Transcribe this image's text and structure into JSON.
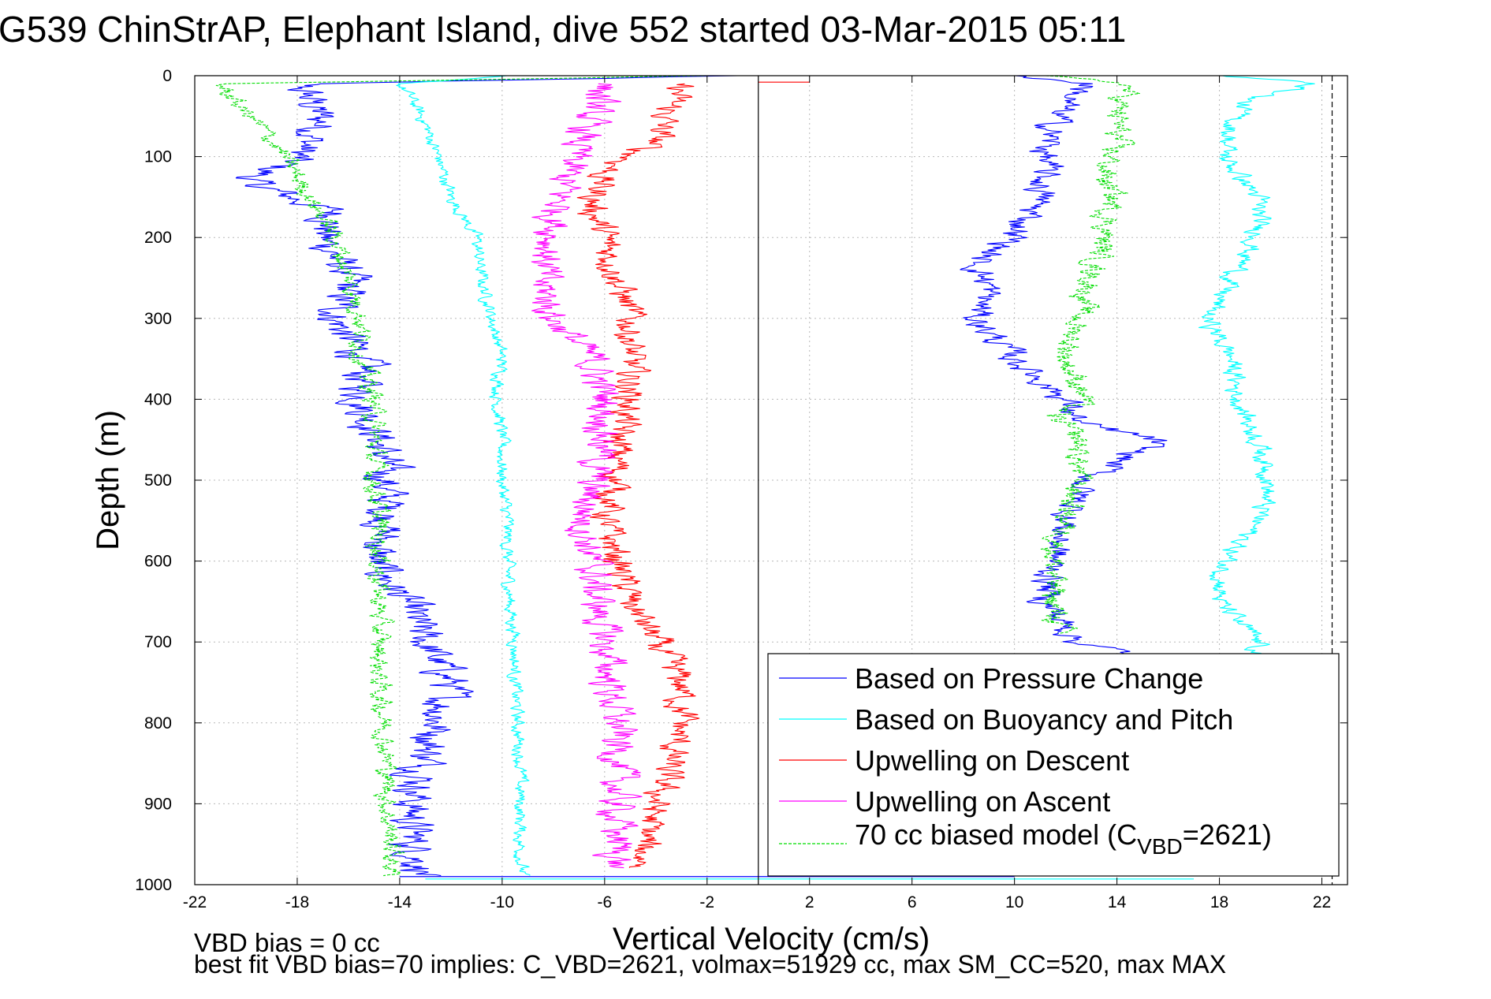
{
  "chart_data": {
    "type": "line",
    "title": "G539 ChinStrAP, Elephant Island, dive 552 started 03-Mar-2015 05:11",
    "xlabel": "Vertical Velocity (cm/s)",
    "ylabel": "Depth (m)",
    "xlim": [
      -22,
      23
    ],
    "ylim": [
      0,
      1000
    ],
    "y_reversed": true,
    "grid": true,
    "x_ticks": [
      "-22",
      "-18",
      "-14",
      "-10",
      "-6",
      "-2",
      "2",
      "6",
      "10",
      "14",
      "18",
      "22"
    ],
    "y_ticks": [
      "0",
      "100",
      "200",
      "300",
      "400",
      "500",
      "600",
      "700",
      "800",
      "900",
      "1000"
    ],
    "vertical_lines": [
      {
        "x": 0,
        "style": "solid",
        "color": "#000000"
      },
      {
        "x": 22.4,
        "style": "dashed",
        "color": "#000000"
      }
    ],
    "legend_position": "bottom-right",
    "legend": [
      {
        "label": "Based on Pressure Change",
        "color": "#0000ff",
        "style": "solid"
      },
      {
        "label": "Based on Buoyancy and Pitch",
        "color": "#00ffff",
        "style": "solid"
      },
      {
        "label": "Upwelling on Descent",
        "color": "#ff0000",
        "style": "solid"
      },
      {
        "label": "Upwelling on Ascent",
        "color": "#ff00ff",
        "style": "solid"
      },
      {
        "label_main": "70 cc biased model (C",
        "label_sub": "VBD",
        "label_tail": "=2621)",
        "color": "#00dd00",
        "style": "dashed"
      }
    ],
    "series": [
      {
        "color": "#0000ff",
        "dash": false,
        "noise": 0.8,
        "depth": [
          0,
          10,
          30,
          60,
          100,
          130,
          170,
          200,
          250,
          300,
          350,
          400,
          450,
          500,
          550,
          600,
          650,
          700,
          750,
          800,
          850,
          900,
          950,
          990
        ],
        "values": [
          -1,
          -18,
          -17.5,
          -17,
          -18,
          -20,
          -16.5,
          -17,
          -16,
          -16.5,
          -15.5,
          -15.5,
          -14.8,
          -14.5,
          -14.5,
          -15,
          -13.8,
          -13,
          -12,
          -12.5,
          -13,
          -13.5,
          -13.5,
          -13
        ]
      },
      {
        "color": "#00ffff",
        "dash": false,
        "noise": 0.25,
        "depth": [
          0,
          10,
          30,
          60,
          100,
          150,
          200,
          250,
          300,
          350,
          400,
          450,
          500,
          550,
          600,
          650,
          700,
          750,
          800,
          850,
          900,
          950,
          990
        ],
        "values": [
          -10,
          -14,
          -13.5,
          -13,
          -12.5,
          -12,
          -11,
          -10.8,
          -10.4,
          -10,
          -10.2,
          -10,
          -10,
          -9.8,
          -9.8,
          -9.7,
          -9.5,
          -9.5,
          -9.4,
          -9.3,
          -9.3,
          -9.3,
          -9.2
        ]
      },
      {
        "color": "#ff0000",
        "dash": false,
        "noise": 0.6,
        "depth": [
          10,
          40,
          80,
          120,
          160,
          200,
          250,
          300,
          350,
          400,
          450,
          500,
          550,
          600,
          650,
          700,
          750,
          800,
          850,
          900,
          950,
          980
        ],
        "values": [
          -3,
          -3.5,
          -4,
          -6,
          -6.5,
          -6,
          -5.5,
          -5,
          -5,
          -5,
          -5.5,
          -5.5,
          -6,
          -5.5,
          -5,
          -4,
          -3,
          -3,
          -3.5,
          -4,
          -4.5,
          -4.5
        ]
      },
      {
        "color": "#ff00ff",
        "dash": false,
        "noise": 0.7,
        "depth": [
          10,
          40,
          80,
          120,
          160,
          200,
          250,
          300,
          350,
          400,
          450,
          500,
          550,
          600,
          650,
          700,
          750,
          800,
          850,
          900,
          950,
          980
        ],
        "values": [
          -6,
          -6.5,
          -7,
          -7.5,
          -7.8,
          -8,
          -8.5,
          -8,
          -6.5,
          -6,
          -6,
          -6.5,
          -6.8,
          -6.5,
          -6.3,
          -6,
          -5.8,
          -5.5,
          -5.5,
          -5.5,
          -5.5,
          -5.5
        ]
      },
      {
        "color": "#00dd00",
        "dash": true,
        "noise": 0.4,
        "depth": [
          0,
          10,
          30,
          60,
          100,
          150,
          200,
          250,
          300,
          350,
          400,
          450,
          500,
          550,
          600,
          650,
          700,
          750,
          800,
          850,
          900,
          950,
          990
        ],
        "values": [
          -2,
          -21,
          -20.5,
          -19.5,
          -18.5,
          -17.5,
          -16.5,
          -16,
          -15.5,
          -15.5,
          -15,
          -15,
          -15,
          -14.8,
          -14.8,
          -14.8,
          -14.8,
          -14.8,
          -14.6,
          -14.5,
          -14.5,
          -14.3,
          -14.3
        ]
      },
      {
        "color": "#0000ff",
        "dash": false,
        "noise": 0.6,
        "depth": [
          0,
          10,
          30,
          60,
          100,
          150,
          200,
          230,
          260,
          300,
          350,
          400,
          430,
          450,
          500,
          550,
          600,
          650,
          700,
          715
        ],
        "values": [
          10,
          13,
          12,
          11.5,
          11.2,
          11,
          10,
          8.5,
          9,
          8.5,
          10,
          12,
          12.5,
          15.5,
          12.8,
          12,
          11.5,
          11.2,
          12.5,
          14.5
        ]
      },
      {
        "color": "#00ffff",
        "dash": false,
        "noise": 0.4,
        "depth": [
          0,
          10,
          30,
          60,
          100,
          150,
          200,
          250,
          300,
          350,
          400,
          450,
          500,
          550,
          600,
          650,
          700,
          715
        ],
        "values": [
          18,
          22,
          19,
          18.5,
          18.2,
          19.5,
          19.5,
          18.5,
          17.5,
          18.5,
          18.7,
          19.5,
          20,
          19.5,
          18.2,
          18,
          19.5,
          19.5
        ]
      },
      {
        "color": "#00dd00",
        "dash": true,
        "noise": 0.5,
        "depth": [
          0,
          10,
          40,
          80,
          120,
          150,
          200,
          250,
          300,
          350,
          400,
          420,
          450,
          500,
          550,
          600,
          650,
          690
        ],
        "values": [
          11,
          14.5,
          14,
          14,
          13.5,
          13.8,
          13.5,
          13,
          12.5,
          12,
          12.8,
          11.5,
          12.5,
          12.5,
          12,
          11.5,
          11.5,
          11.8
        ]
      }
    ],
    "spikes": [
      {
        "depth": 8,
        "x_from": 0,
        "x_to": 2,
        "color": "#ff0000"
      },
      {
        "depth": 990,
        "x_from": -14,
        "x_to": 10,
        "color": "#0000ff"
      },
      {
        "depth": 993,
        "x_from": -13,
        "x_to": 17,
        "color": "#00ffff"
      }
    ],
    "annotations": [
      "VBD bias = 0 cc",
      "best fit VBD bias=70 implies: C_VBD=2621, volmax=51929 cc, max SM_CC=520, max MAX"
    ]
  }
}
